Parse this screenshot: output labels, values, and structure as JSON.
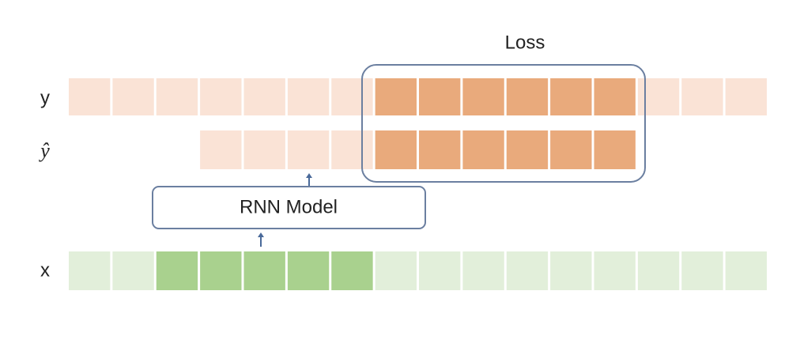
{
  "labels": {
    "loss": "Loss",
    "y": "y",
    "y_hat": "ŷ",
    "model": "RNN Model",
    "x": "x"
  }
}
